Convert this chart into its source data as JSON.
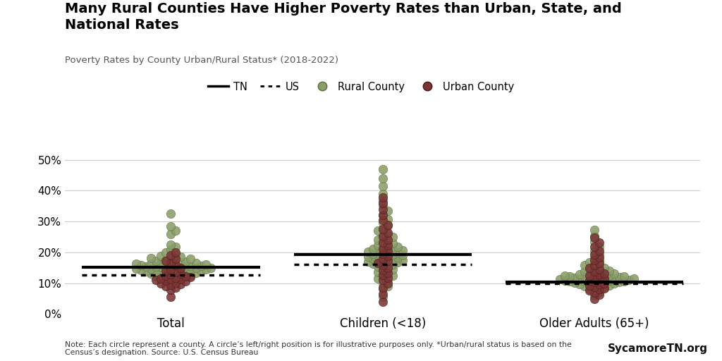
{
  "title": "Many Rural Counties Have Higher Poverty Rates than Urban, State, and\nNational Rates",
  "subtitle": "Poverty Rates by County Urban/Rural Status* (2018-2022)",
  "note": "Note: Each circle represent a county. A circle’s left/right position is for illustrative purposes only. *Urban/rural status is based on the\nCensus’s designation. Source: U.S. Census Bureau",
  "branding": "SycamoreTN.org",
  "rural_color": "#8a9e6a",
  "urban_color": "#7a3535",
  "categories": [
    "Total",
    "Children (<18)",
    "Older Adults (65+)"
  ],
  "tn_lines": [
    0.152,
    0.194,
    0.103
  ],
  "us_lines": [
    0.126,
    0.161,
    0.099
  ],
  "rural_total": [
    0.109,
    0.112,
    0.114,
    0.118,
    0.12,
    0.121,
    0.122,
    0.124,
    0.126,
    0.128,
    0.13,
    0.132,
    0.133,
    0.135,
    0.136,
    0.137,
    0.138,
    0.139,
    0.14,
    0.141,
    0.142,
    0.143,
    0.144,
    0.145,
    0.146,
    0.147,
    0.148,
    0.149,
    0.15,
    0.151,
    0.152,
    0.153,
    0.154,
    0.155,
    0.156,
    0.157,
    0.158,
    0.159,
    0.16,
    0.161,
    0.162,
    0.163,
    0.164,
    0.165,
    0.167,
    0.168,
    0.17,
    0.172,
    0.174,
    0.176,
    0.178,
    0.18,
    0.182,
    0.185,
    0.188,
    0.192,
    0.196,
    0.2,
    0.208,
    0.218,
    0.225,
    0.26,
    0.27,
    0.285,
    0.325
  ],
  "urban_total": [
    0.055,
    0.078,
    0.085,
    0.09,
    0.095,
    0.098,
    0.1,
    0.102,
    0.105,
    0.108,
    0.11,
    0.112,
    0.114,
    0.116,
    0.118,
    0.12,
    0.122,
    0.124,
    0.128,
    0.132,
    0.136,
    0.14,
    0.145,
    0.15,
    0.158,
    0.165,
    0.172,
    0.18,
    0.19,
    0.2
  ],
  "rural_children": [
    0.055,
    0.08,
    0.09,
    0.1,
    0.11,
    0.115,
    0.12,
    0.125,
    0.13,
    0.135,
    0.14,
    0.145,
    0.15,
    0.155,
    0.16,
    0.162,
    0.164,
    0.166,
    0.168,
    0.17,
    0.172,
    0.174,
    0.176,
    0.178,
    0.18,
    0.182,
    0.184,
    0.186,
    0.188,
    0.19,
    0.192,
    0.194,
    0.196,
    0.198,
    0.2,
    0.202,
    0.204,
    0.206,
    0.208,
    0.21,
    0.212,
    0.215,
    0.218,
    0.222,
    0.226,
    0.23,
    0.235,
    0.24,
    0.245,
    0.25,
    0.256,
    0.262,
    0.27,
    0.278,
    0.286,
    0.296,
    0.308,
    0.32,
    0.335,
    0.352,
    0.37,
    0.39,
    0.415,
    0.44,
    0.47
  ],
  "urban_children": [
    0.04,
    0.065,
    0.085,
    0.1,
    0.11,
    0.118,
    0.126,
    0.134,
    0.142,
    0.15,
    0.158,
    0.165,
    0.172,
    0.18,
    0.188,
    0.196,
    0.204,
    0.212,
    0.222,
    0.232,
    0.242,
    0.252,
    0.264,
    0.276,
    0.29,
    0.305,
    0.322,
    0.34,
    0.36,
    0.378
  ],
  "rural_older": [
    0.06,
    0.072,
    0.078,
    0.082,
    0.086,
    0.088,
    0.09,
    0.092,
    0.094,
    0.096,
    0.098,
    0.1,
    0.101,
    0.102,
    0.103,
    0.104,
    0.105,
    0.106,
    0.107,
    0.108,
    0.109,
    0.11,
    0.111,
    0.112,
    0.113,
    0.114,
    0.115,
    0.116,
    0.117,
    0.118,
    0.119,
    0.12,
    0.121,
    0.122,
    0.123,
    0.124,
    0.125,
    0.126,
    0.128,
    0.13,
    0.132,
    0.134,
    0.136,
    0.138,
    0.14,
    0.143,
    0.146,
    0.15,
    0.154,
    0.158,
    0.163,
    0.168,
    0.174,
    0.182,
    0.192,
    0.204,
    0.218,
    0.234,
    0.252,
    0.272
  ],
  "urban_older": [
    0.05,
    0.062,
    0.07,
    0.076,
    0.08,
    0.084,
    0.088,
    0.092,
    0.096,
    0.1,
    0.104,
    0.108,
    0.112,
    0.116,
    0.12,
    0.124,
    0.128,
    0.132,
    0.138,
    0.144,
    0.15,
    0.158,
    0.166,
    0.175,
    0.184,
    0.194,
    0.205,
    0.218,
    0.232,
    0.248
  ],
  "ylim": [
    0.0,
    0.55
  ],
  "yticks": [
    0.0,
    0.1,
    0.2,
    0.3,
    0.4,
    0.5
  ],
  "ytick_labels": [
    "0%",
    "10%",
    "20%",
    "30%",
    "40%",
    "50%"
  ],
  "dot_size": 80,
  "dot_alpha": 0.88,
  "line_halfwidth": 0.42,
  "line_width": 3.0
}
